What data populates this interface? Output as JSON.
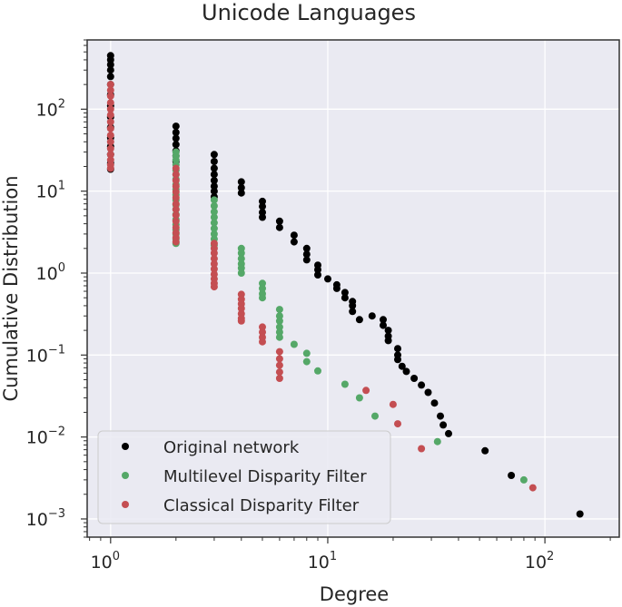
{
  "chart_data": {
    "type": "scatter",
    "title": "Unicode Languages",
    "xlabel": "Degree",
    "ylabel": "Cumulative Distribution",
    "xscale": "log",
    "yscale": "log",
    "xlim": [
      0.78,
      220
    ],
    "ylim": [
      0.0006,
      700
    ],
    "xticks": [
      {
        "value": 1,
        "base": "10",
        "exp": "0"
      },
      {
        "value": 10,
        "base": "10",
        "exp": "1"
      },
      {
        "value": 100,
        "base": "10",
        "exp": "2"
      }
    ],
    "yticks": [
      {
        "value": 0.001,
        "base": "10",
        "exp": "−3"
      },
      {
        "value": 0.01,
        "base": "10",
        "exp": "−2"
      },
      {
        "value": 0.1,
        "base": "10",
        "exp": "−1"
      },
      {
        "value": 1,
        "base": "10",
        "exp": "0"
      },
      {
        "value": 10,
        "base": "10",
        "exp": "1"
      },
      {
        "value": 100,
        "base": "10",
        "exp": "2"
      }
    ],
    "grid": true,
    "legend_position": "bottom-left",
    "series": [
      {
        "name": "Original network",
        "color": "#000000",
        "points": [
          [
            1,
            450
          ],
          [
            1,
            400
          ],
          [
            1,
            350
          ],
          [
            1,
            300
          ],
          [
            1,
            250
          ],
          [
            1,
            200
          ],
          [
            1,
            150
          ],
          [
            1,
            110
          ],
          [
            1,
            80
          ],
          [
            1,
            60
          ],
          [
            1,
            45
          ],
          [
            1,
            35
          ],
          [
            1,
            28
          ],
          [
            1,
            22
          ],
          [
            1,
            18.5
          ],
          [
            2,
            62
          ],
          [
            2,
            52
          ],
          [
            2,
            44
          ],
          [
            2,
            37
          ],
          [
            2,
            31
          ],
          [
            2,
            27
          ],
          [
            2,
            23
          ],
          [
            3,
            28
          ],
          [
            3,
            23
          ],
          [
            3,
            19
          ],
          [
            3,
            16
          ],
          [
            3,
            13.5
          ],
          [
            3,
            11.5
          ],
          [
            3,
            10
          ],
          [
            3,
            8.5
          ],
          [
            4,
            13
          ],
          [
            4,
            11
          ],
          [
            4,
            9.5
          ],
          [
            5,
            7.5
          ],
          [
            5,
            6.5
          ],
          [
            5,
            5.5
          ],
          [
            5,
            4.8
          ],
          [
            6,
            4.3
          ],
          [
            6,
            3.6
          ],
          [
            7,
            2.9
          ],
          [
            7,
            2.4
          ],
          [
            8,
            2.0
          ],
          [
            8,
            1.7
          ],
          [
            8,
            1.45
          ],
          [
            9,
            1.25
          ],
          [
            9,
            1.1
          ],
          [
            9,
            0.95
          ],
          [
            10,
            0.85
          ],
          [
            11,
            0.72
          ],
          [
            11,
            0.65
          ],
          [
            12,
            0.58
          ],
          [
            12,
            0.5
          ],
          [
            13,
            0.45
          ],
          [
            13,
            0.4
          ],
          [
            13,
            0.34
          ],
          [
            14,
            0.27
          ],
          [
            16,
            0.3
          ],
          [
            18,
            0.27
          ],
          [
            18,
            0.23
          ],
          [
            19,
            0.2
          ],
          [
            19,
            0.17
          ],
          [
            19,
            0.15
          ],
          [
            21,
            0.12
          ],
          [
            21,
            0.1
          ],
          [
            21,
            0.088
          ],
          [
            22,
            0.073
          ],
          [
            23,
            0.063
          ],
          [
            25,
            0.052
          ],
          [
            27,
            0.043
          ],
          [
            29,
            0.035
          ],
          [
            31,
            0.026
          ],
          [
            33,
            0.018
          ],
          [
            34,
            0.014
          ],
          [
            36,
            0.011
          ],
          [
            53,
            0.0068
          ],
          [
            70,
            0.0034
          ],
          [
            145,
            0.00115
          ]
        ]
      },
      {
        "name": "Multilevel Disparity Filter",
        "color": "#55a868",
        "points": [
          [
            2,
            30
          ],
          [
            2,
            27
          ],
          [
            2,
            24
          ],
          [
            2,
            21
          ],
          [
            2,
            18
          ],
          [
            2,
            16
          ],
          [
            2,
            14
          ],
          [
            2,
            12
          ],
          [
            2,
            10.5
          ],
          [
            2,
            9
          ],
          [
            2,
            7.8
          ],
          [
            2,
            6.8
          ],
          [
            2,
            6
          ],
          [
            2,
            5.2
          ],
          [
            2,
            4.5
          ],
          [
            2,
            3.9
          ],
          [
            2,
            3.4
          ],
          [
            2,
            3
          ],
          [
            2,
            2.6
          ],
          [
            2,
            2.3
          ],
          [
            3,
            7.8
          ],
          [
            3,
            6.6
          ],
          [
            3,
            5.6
          ],
          [
            3,
            4.8
          ],
          [
            3,
            4.1
          ],
          [
            3,
            3.5
          ],
          [
            3,
            3.0
          ],
          [
            3,
            2.6
          ],
          [
            3,
            2.2
          ],
          [
            4,
            2.0
          ],
          [
            4,
            1.75
          ],
          [
            4,
            1.5
          ],
          [
            4,
            1.3
          ],
          [
            4,
            1.15
          ],
          [
            4,
            1.0
          ],
          [
            5,
            0.75
          ],
          [
            5,
            0.65
          ],
          [
            5,
            0.56
          ],
          [
            5,
            0.5
          ],
          [
            6,
            0.36
          ],
          [
            6,
            0.3
          ],
          [
            6,
            0.26
          ],
          [
            6,
            0.22
          ],
          [
            6,
            0.19
          ],
          [
            6,
            0.165
          ],
          [
            7,
            0.135
          ],
          [
            8,
            0.105
          ],
          [
            8,
            0.083
          ],
          [
            9,
            0.064
          ],
          [
            12,
            0.044
          ],
          [
            14,
            0.03
          ],
          [
            16.5,
            0.018
          ],
          [
            32,
            0.0088
          ],
          [
            80,
            0.003
          ]
        ]
      },
      {
        "name": "Classical Disparity Filter",
        "color": "#c44e52",
        "points": [
          [
            1,
            200
          ],
          [
            1,
            170
          ],
          [
            1,
            145
          ],
          [
            1,
            120
          ],
          [
            1,
            100
          ],
          [
            1,
            85
          ],
          [
            1,
            70
          ],
          [
            1,
            58
          ],
          [
            1,
            48
          ],
          [
            1,
            40
          ],
          [
            1,
            33
          ],
          [
            1,
            28
          ],
          [
            1,
            24
          ],
          [
            1,
            21
          ],
          [
            1,
            19
          ],
          [
            2,
            19
          ],
          [
            2,
            16
          ],
          [
            2,
            13.5
          ],
          [
            2,
            11.5
          ],
          [
            2,
            9.8
          ],
          [
            2,
            8.3
          ],
          [
            2,
            7
          ],
          [
            2,
            6
          ],
          [
            2,
            5.1
          ],
          [
            2,
            4.3
          ],
          [
            2,
            3.6
          ],
          [
            2,
            3.1
          ],
          [
            2,
            2.7
          ],
          [
            2,
            2.4
          ],
          [
            3,
            2.3
          ],
          [
            3,
            2.0
          ],
          [
            3,
            1.75
          ],
          [
            3,
            1.5
          ],
          [
            3,
            1.3
          ],
          [
            3,
            1.12
          ],
          [
            3,
            0.97
          ],
          [
            3,
            0.85
          ],
          [
            3,
            0.75
          ],
          [
            3,
            0.68
          ],
          [
            4,
            0.55
          ],
          [
            4,
            0.48
          ],
          [
            4,
            0.42
          ],
          [
            4,
            0.37
          ],
          [
            4,
            0.32
          ],
          [
            4,
            0.28
          ],
          [
            4,
            0.26
          ],
          [
            5,
            0.22
          ],
          [
            5,
            0.19
          ],
          [
            5,
            0.165
          ],
          [
            5,
            0.145
          ],
          [
            6,
            0.11
          ],
          [
            6,
            0.09
          ],
          [
            6,
            0.075
          ],
          [
            6,
            0.062
          ],
          [
            6,
            0.052
          ],
          [
            15,
            0.037
          ],
          [
            20,
            0.025
          ],
          [
            21,
            0.0145
          ],
          [
            27,
            0.0072
          ],
          [
            88,
            0.0024
          ]
        ]
      }
    ]
  }
}
